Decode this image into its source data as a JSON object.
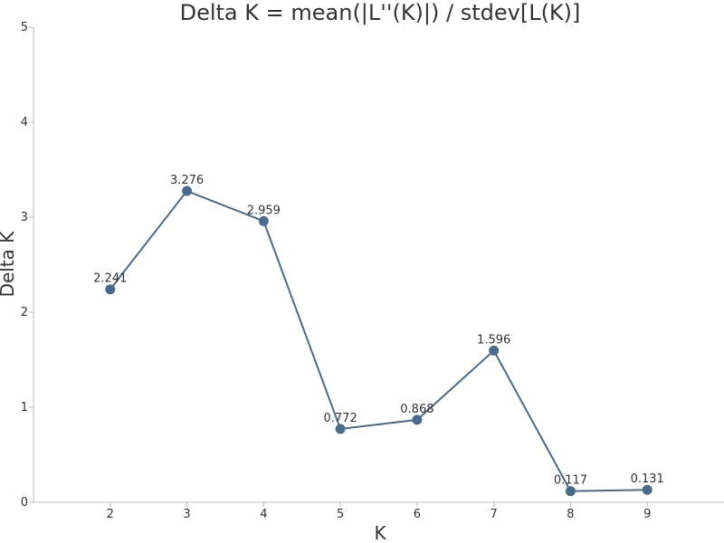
{
  "chart_data": {
    "type": "line",
    "title": "Delta K = mean(|L''(K)|) / stdev[L(K)]",
    "xlabel": "K",
    "ylabel": "Delta K",
    "x": [
      2,
      3,
      4,
      5,
      6,
      7,
      8,
      9
    ],
    "values": [
      2.241,
      3.276,
      2.959,
      0.772,
      0.868,
      1.596,
      0.117,
      0.131
    ],
    "data_labels": [
      "2.241",
      "3.276",
      "2.959",
      "0.772",
      "0.868",
      "1.596",
      "0.117",
      "0.131"
    ],
    "x_ticks": [
      "2",
      "3",
      "4",
      "5",
      "6",
      "7",
      "8",
      "9"
    ],
    "y_ticks": [
      "0",
      "1",
      "2",
      "3",
      "4",
      "5"
    ],
    "xlim": [
      1,
      10
    ],
    "ylim": [
      0,
      5
    ],
    "grid": false,
    "line_color": "#4a6a8a",
    "marker_color": "#4a6a8a"
  }
}
